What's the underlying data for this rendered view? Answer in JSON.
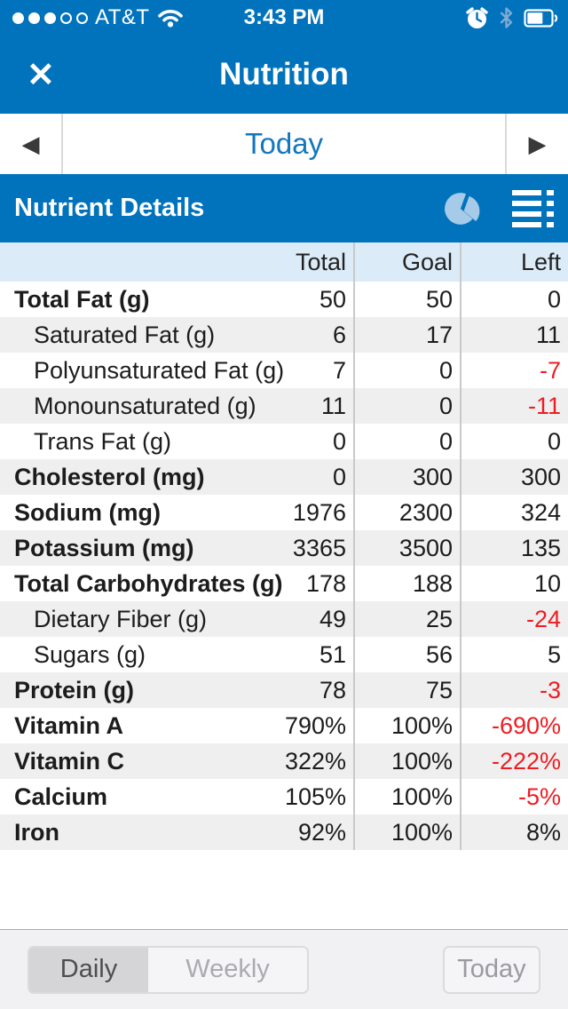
{
  "status_bar": {
    "carrier": "AT&T",
    "signal_dots_filled": 3,
    "signal_dots_total": 5,
    "time": "3:43 PM",
    "icons": [
      "alarm-clock-icon",
      "bluetooth-icon",
      "battery-icon"
    ]
  },
  "header": {
    "title": "Nutrition",
    "close_label": "✕"
  },
  "date_nav": {
    "prev_arrow": "◀",
    "label": "Today",
    "next_arrow": "▶"
  },
  "section": {
    "title": "Nutrient Details",
    "icons": [
      "pie-chart-icon",
      "list-view-icon"
    ]
  },
  "table": {
    "columns": [
      "Total",
      "Goal",
      "Left"
    ],
    "rows": [
      {
        "label": "Total Fat (g)",
        "indent": false,
        "total": "50",
        "goal": "50",
        "left": "0"
      },
      {
        "label": "Saturated Fat (g)",
        "indent": true,
        "total": "6",
        "goal": "17",
        "left": "11"
      },
      {
        "label": "Polyunsaturated Fat (g)",
        "indent": true,
        "total": "7",
        "goal": "0",
        "left": "-7"
      },
      {
        "label": "Monounsaturated (g)",
        "indent": true,
        "total": "11",
        "goal": "0",
        "left": "-11"
      },
      {
        "label": "Trans Fat (g)",
        "indent": true,
        "total": "0",
        "goal": "0",
        "left": "0"
      },
      {
        "label": "Cholesterol (mg)",
        "indent": false,
        "total": "0",
        "goal": "300",
        "left": "300"
      },
      {
        "label": "Sodium (mg)",
        "indent": false,
        "total": "1976",
        "goal": "2300",
        "left": "324"
      },
      {
        "label": "Potassium (mg)",
        "indent": false,
        "total": "3365",
        "goal": "3500",
        "left": "135"
      },
      {
        "label": "Total Carbohydrates (g)",
        "indent": false,
        "total": "178",
        "goal": "188",
        "left": "10"
      },
      {
        "label": "Dietary Fiber (g)",
        "indent": true,
        "total": "49",
        "goal": "25",
        "left": "-24"
      },
      {
        "label": "Sugars (g)",
        "indent": true,
        "total": "51",
        "goal": "56",
        "left": "5"
      },
      {
        "label": "Protein (g)",
        "indent": false,
        "total": "78",
        "goal": "75",
        "left": "-3"
      },
      {
        "label": "Vitamin A",
        "indent": false,
        "total": "790%",
        "goal": "100%",
        "left": "-690%"
      },
      {
        "label": "Vitamin C",
        "indent": false,
        "total": "322%",
        "goal": "100%",
        "left": "-222%"
      },
      {
        "label": "Calcium",
        "indent": false,
        "total": "105%",
        "goal": "100%",
        "left": "-5%"
      },
      {
        "label": "Iron",
        "indent": false,
        "total": "92%",
        "goal": "100%",
        "left": "8%"
      }
    ]
  },
  "toolbar": {
    "segments": [
      {
        "label": "Daily",
        "selected": true
      },
      {
        "label": "Weekly",
        "selected": false
      }
    ],
    "today_button": "Today"
  },
  "colors": {
    "header_blue": "#0173BD",
    "accent_blue": "#1377BD",
    "negative_red": "#EE1D23",
    "table_header_bg": "#DCEBF8",
    "row_alt_bg": "#EFEFEF",
    "toolbar_bg": "#F1F1F4"
  }
}
